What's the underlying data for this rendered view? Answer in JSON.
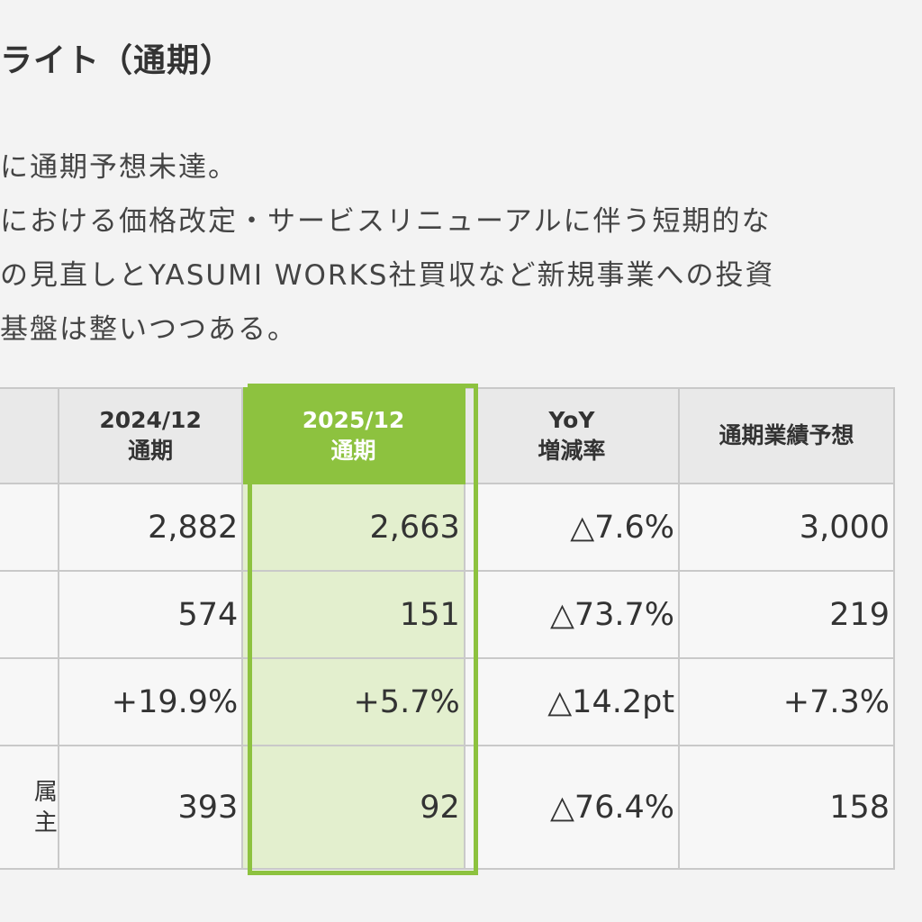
{
  "heading": "ライト（通期）",
  "paragraph_lines": [
    "に通期予想未達。",
    "における価格改定・サービスリニューアルに伴う短期的な",
    "の見直しとYASUMI WORKS社買収など新規事業への投資",
    "基盤は整いつつある。"
  ],
  "table": {
    "headers": {
      "fy2024": [
        "2024/12",
        "通期"
      ],
      "fy2025": [
        "2025/12",
        "通期"
      ],
      "yoy": [
        "YoY",
        "増減率"
      ],
      "forecast": "通期業績予想"
    },
    "rows": [
      {
        "label_lines": [
          "",
          ""
        ],
        "fy2024": "2,882",
        "fy2025": "2,663",
        "yoy": "△7.6%",
        "forecast": "3,000"
      },
      {
        "label_lines": [
          "",
          ""
        ],
        "fy2024": "574",
        "fy2025": "151",
        "yoy": "△73.7%",
        "forecast": "219"
      },
      {
        "label_lines": [
          "",
          ""
        ],
        "fy2024": "+19.9%",
        "fy2025": "+5.7%",
        "yoy": "△14.2pt",
        "forecast": "+7.3%"
      },
      {
        "label_lines": [
          "属",
          "主"
        ],
        "fy2024": "393",
        "fy2025": "92",
        "yoy": "△76.4%",
        "forecast": "158"
      }
    ]
  },
  "colors": {
    "highlight_header": "#8dc23f",
    "highlight_cell": "#e3efce",
    "header_bg": "#e9e9e9",
    "border": "#c9c9c9"
  }
}
